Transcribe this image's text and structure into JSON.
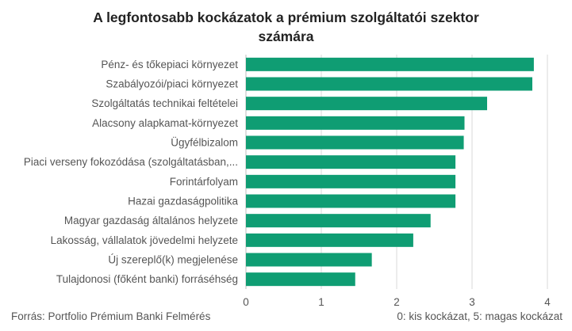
{
  "chart_data": {
    "type": "bar",
    "orientation": "horizontal",
    "title": "A legfontosabb kockázatok a prémium szolgáltatói szektor számára",
    "title_lines": [
      "A legfontosabb kockázatok a prémium szolgáltatói szektor",
      "számára"
    ],
    "categories": [
      "Pénz- és tőkepiaci környezet",
      "Szabályozói/piaci környezet",
      "Szolgáltatás technikai feltételei",
      "Alacsony alapkamat-környezet",
      "Ügyfélbizalom",
      "Piaci verseny fokozódása (szolgáltatásban,...",
      "Forintárfolyam",
      "Hazai gazdaságpolitika",
      "Magyar gazdaság általános helyzete",
      "Lakosság, vállalatok jövedelmi helyzete",
      "Új szereplő(k) megjelenése",
      "Tulajdonosi (főként banki) forráséhség"
    ],
    "values": [
      3.82,
      3.8,
      3.2,
      2.9,
      2.89,
      2.78,
      2.78,
      2.78,
      2.45,
      2.22,
      1.67,
      1.45
    ],
    "xlim": [
      0,
      4
    ],
    "xticks": [
      "0",
      "1",
      "2",
      "3",
      "4"
    ],
    "grid": true,
    "bar_color": "#0f9d73",
    "source": "Forrás: Portfolio Prémium Banki Felmérés",
    "scale_note": "0: kis kockázat, 5: magas kockázat"
  }
}
